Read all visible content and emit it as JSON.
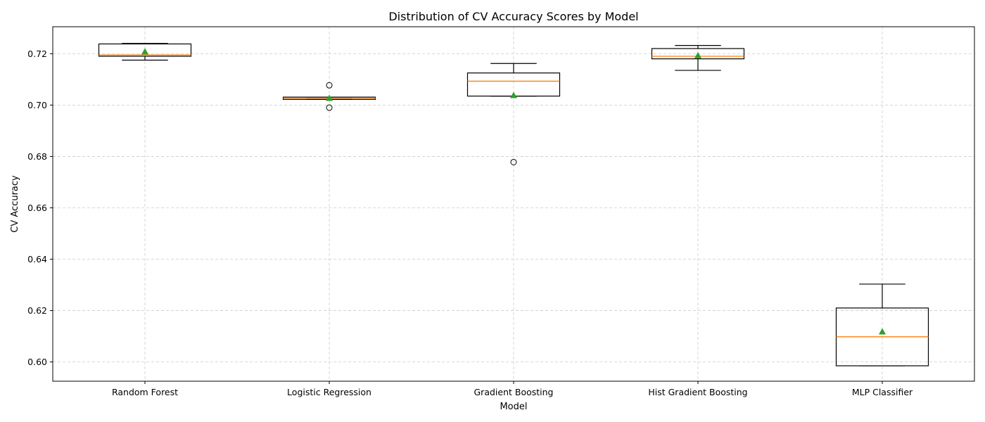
{
  "chart_data": {
    "type": "box",
    "title": "Distribution of CV Accuracy Scores by Model",
    "xlabel": "Model",
    "ylabel": "CV Accuracy",
    "ylim": [
      0.5925,
      0.7305
    ],
    "yticks": [
      0.6,
      0.62,
      0.64,
      0.66,
      0.68,
      0.7,
      0.72
    ],
    "ytick_labels": [
      "0.60",
      "0.62",
      "0.64",
      "0.66",
      "0.68",
      "0.70",
      "0.72"
    ],
    "grid": true,
    "show_means": true,
    "colors": {
      "box": "#000000",
      "median": "#ff7f0e",
      "mean": "#2ca02c",
      "grid": "#cccccc"
    },
    "categories": [
      "Random Forest",
      "Logistic Regression",
      "Gradient Boosting",
      "Hist Gradient Boosting",
      "MLP Classifier"
    ],
    "boxes": [
      {
        "name": "Random Forest",
        "whisker_low": 0.7175,
        "q1": 0.719,
        "median": 0.7195,
        "q3": 0.7238,
        "whisker_high": 0.724,
        "mean": 0.7208,
        "outliers": []
      },
      {
        "name": "Logistic Regression",
        "whisker_low": 0.7022,
        "q1": 0.7022,
        "median": 0.7027,
        "q3": 0.7031,
        "whisker_high": 0.7031,
        "mean": 0.7027,
        "outliers": [
          0.7077,
          0.699
        ]
      },
      {
        "name": "Gradient Boosting",
        "whisker_low": 0.7035,
        "q1": 0.7035,
        "median": 0.7093,
        "q3": 0.7125,
        "whisker_high": 0.7162,
        "mean": 0.7038,
        "outliers": [
          0.6778
        ]
      },
      {
        "name": "Hist Gradient Boosting",
        "whisker_low": 0.7135,
        "q1": 0.718,
        "median": 0.719,
        "q3": 0.722,
        "whisker_high": 0.7232,
        "mean": 0.7193,
        "outliers": []
      },
      {
        "name": "MLP Classifier",
        "whisker_low": 0.5985,
        "q1": 0.5985,
        "median": 0.6098,
        "q3": 0.621,
        "whisker_high": 0.6303,
        "mean": 0.6118,
        "outliers": []
      }
    ]
  }
}
